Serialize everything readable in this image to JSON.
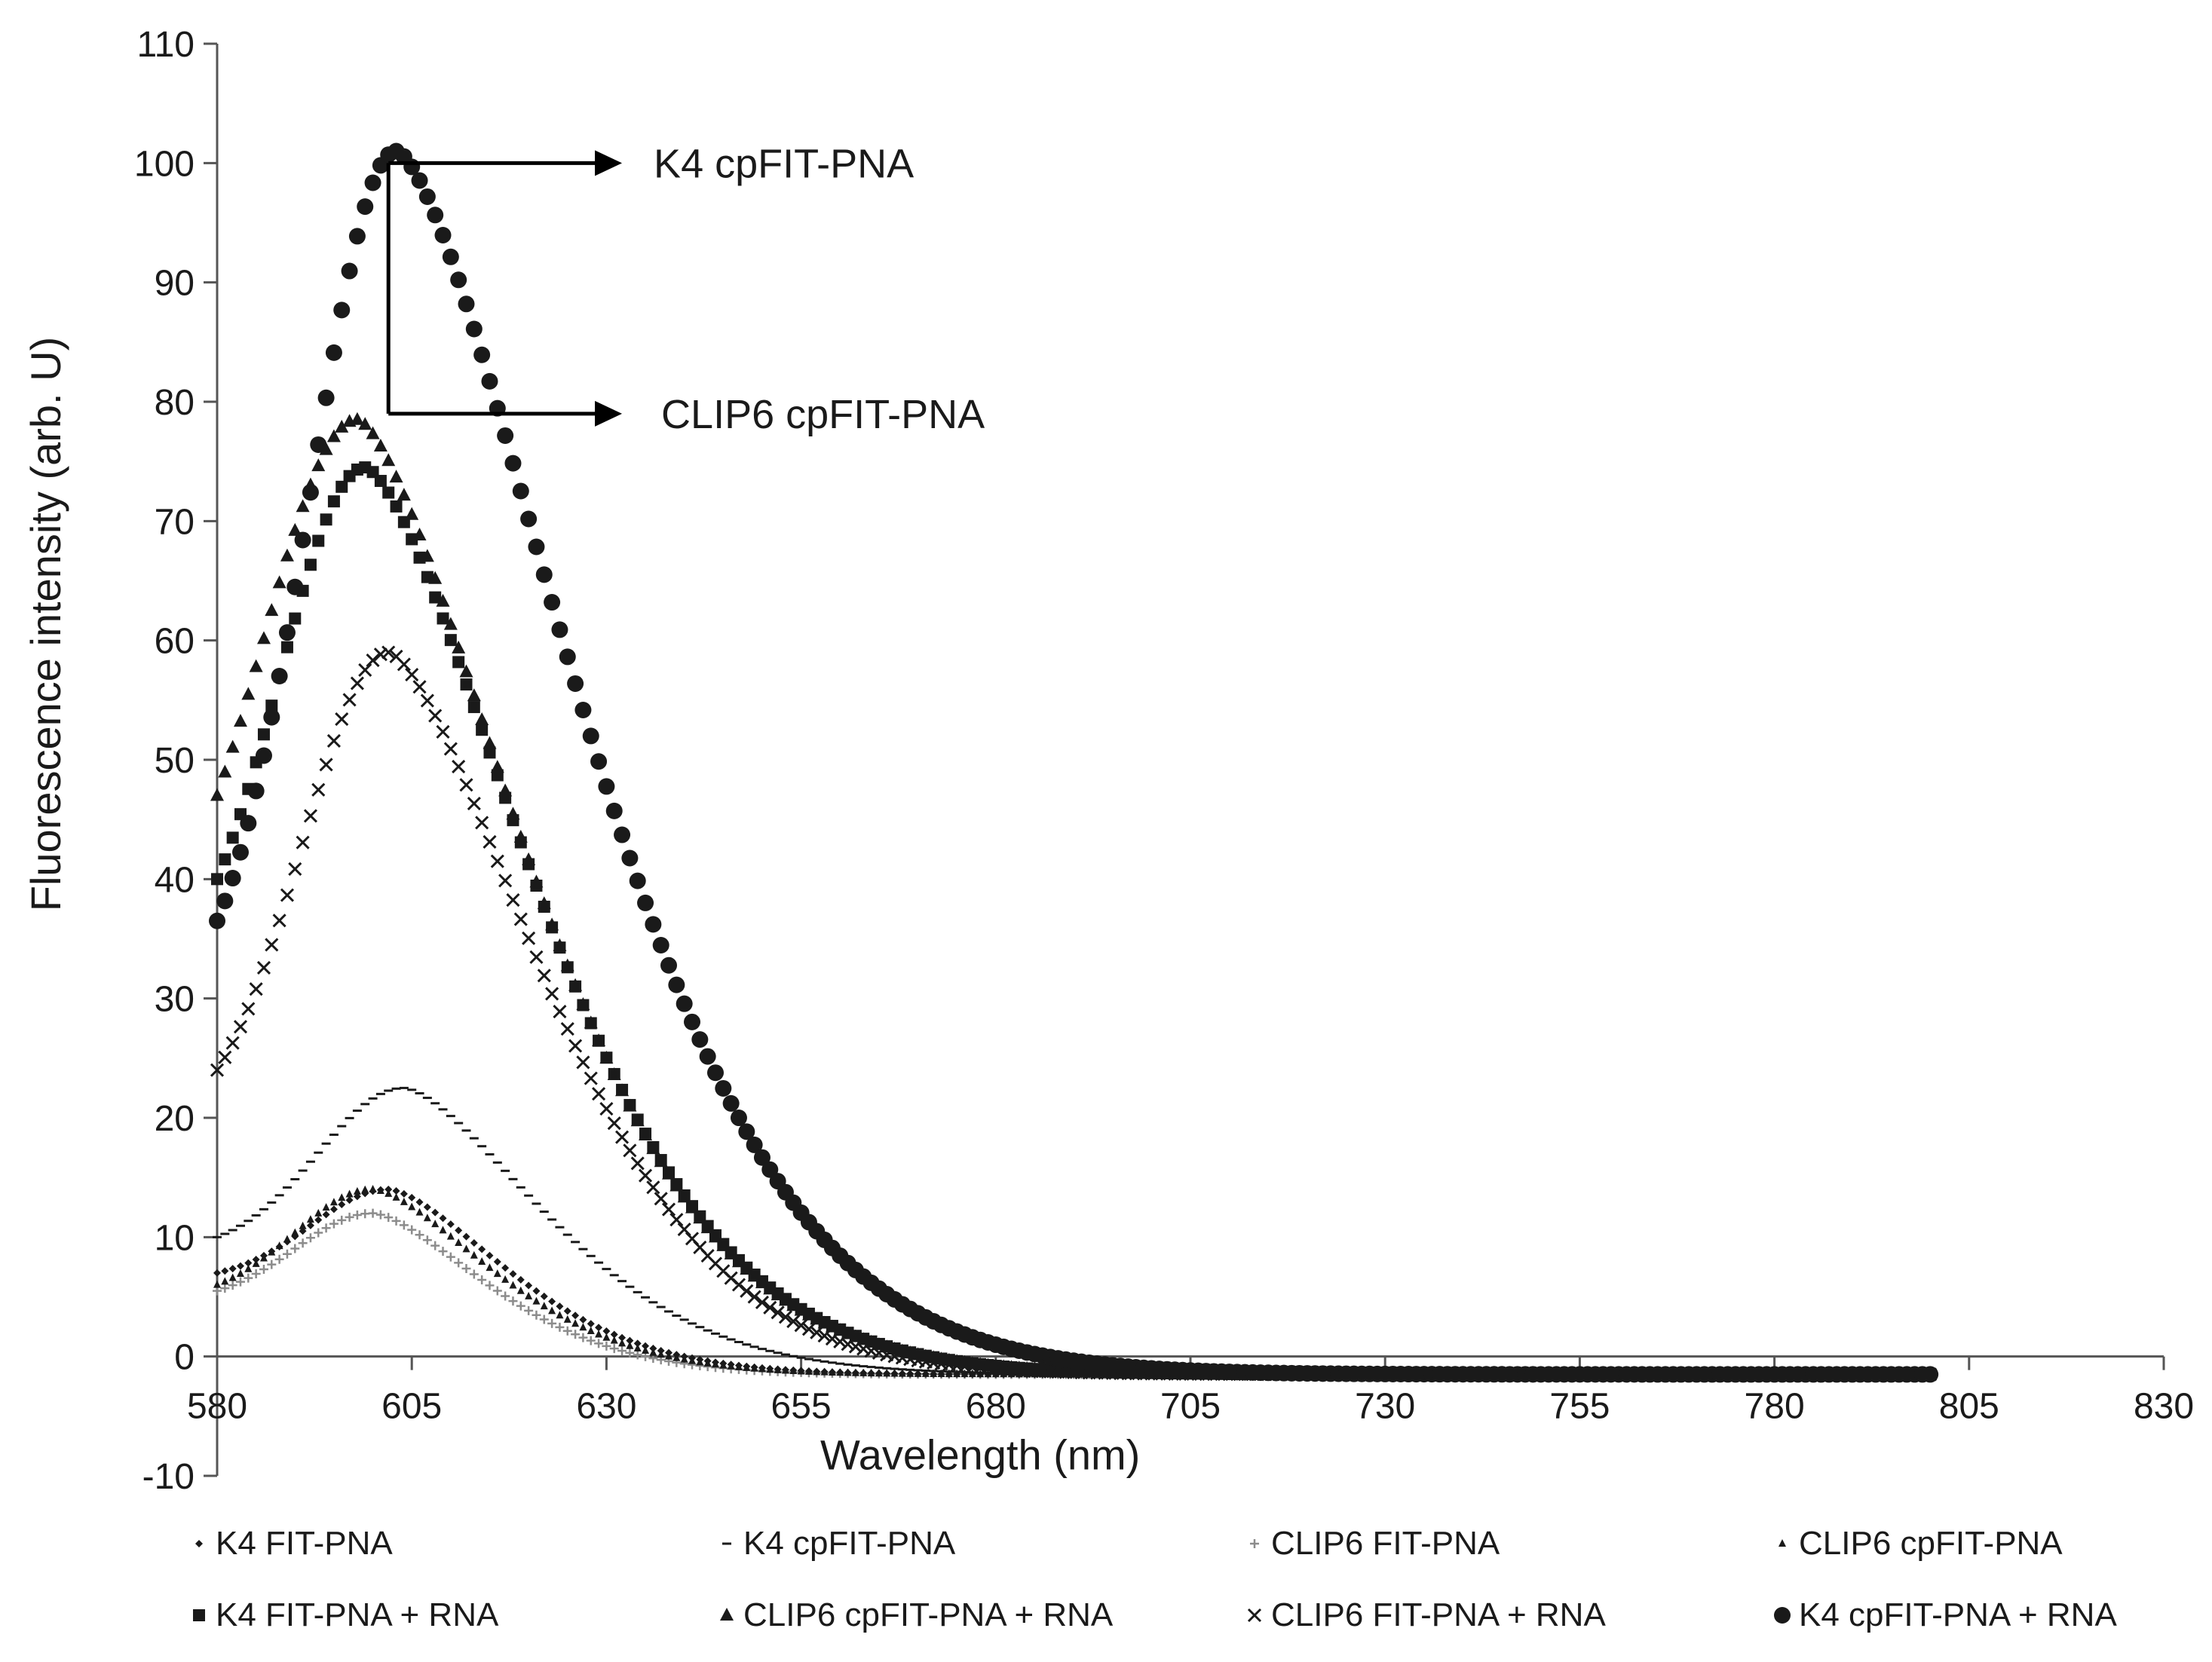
{
  "chart_data": {
    "type": "scatter",
    "title": "",
    "xlabel": "Wavelength (nm)",
    "ylabel": "Fluorescence intensity (arb. U)",
    "xlim": [
      580,
      830
    ],
    "ylim": [
      -10,
      110
    ],
    "xticks": [
      580,
      605,
      630,
      655,
      680,
      705,
      730,
      755,
      780,
      805,
      830
    ],
    "yticks": [
      -10,
      0,
      10,
      20,
      30,
      40,
      50,
      60,
      70,
      80,
      90,
      100,
      110
    ],
    "grid": false,
    "legend_position": "bottom",
    "x_range": {
      "start": 580,
      "end": 800,
      "step": 1
    },
    "series": [
      {
        "name": "K4 FIT-PNA",
        "marker": "small-diamond",
        "color": "#1a1a1a",
        "peak_x": 602,
        "peak_y": 14,
        "start_y": 7,
        "end_y": -1.5,
        "sigma_left": 10,
        "decay_right": 22
      },
      {
        "name": "K4 cpFIT-PNA",
        "marker": "dash",
        "color": "#1a1a1a",
        "peak_x": 604,
        "peak_y": 22.5,
        "start_y": 10,
        "end_y": -1.5,
        "sigma_left": 11,
        "decay_right": 26
      },
      {
        "name": "CLIP6 FIT-PNA",
        "marker": "plus",
        "color": "#8c8c8c",
        "peak_x": 600,
        "peak_y": 12,
        "start_y": 5.5,
        "end_y": -1.5,
        "sigma_left": 10,
        "decay_right": 21
      },
      {
        "name": "CLIP6 cpFIT-PNA",
        "marker": "small-triangle",
        "color": "#1a1a1a",
        "peak_x": 600,
        "peak_y": 14,
        "start_y": 6,
        "end_y": -1.5,
        "sigma_left": 10,
        "decay_right": 22
      },
      {
        "name": "K4 FIT-PNA + RNA",
        "marker": "square",
        "color": "#1a1a1a",
        "peak_x": 599,
        "peak_y": 74.5,
        "start_y": 40,
        "end_y": -1.5,
        "sigma_left": 11,
        "decay_right": 30
      },
      {
        "name": "CLIP6 cpFIT-PNA + RNA",
        "marker": "triangle",
        "color": "#1a1a1a",
        "peak_x": 598,
        "peak_y": 78.5,
        "start_y": 47,
        "end_y": -1.5,
        "sigma_left": 12,
        "decay_right": 30
      },
      {
        "name": "CLIP6 FIT-PNA + RNA",
        "marker": "cross",
        "color": "#1a1a1a",
        "peak_x": 602,
        "peak_y": 59,
        "start_y": 24,
        "end_y": -1.5,
        "sigma_left": 11,
        "decay_right": 28
      },
      {
        "name": "K4 cpFIT-PNA + RNA",
        "marker": "circle",
        "color": "#1a1a1a",
        "peak_x": 603,
        "peak_y": 101,
        "start_y": 36.5,
        "end_y": -1.5,
        "sigma_left": 11,
        "decay_right": 33
      }
    ],
    "annotations": [
      {
        "text": "K4 cpFIT-PNA",
        "arrow_from": [
          602,
          100
        ],
        "arrow_to": [
          632,
          100
        ]
      },
      {
        "text": "CLIP6 cpFIT-PNA",
        "arrow_from": [
          602,
          79
        ],
        "arrow_to": [
          632,
          79
        ]
      }
    ],
    "bracket": {
      "x": 602,
      "y_top": 100,
      "y_bottom": 79
    }
  }
}
